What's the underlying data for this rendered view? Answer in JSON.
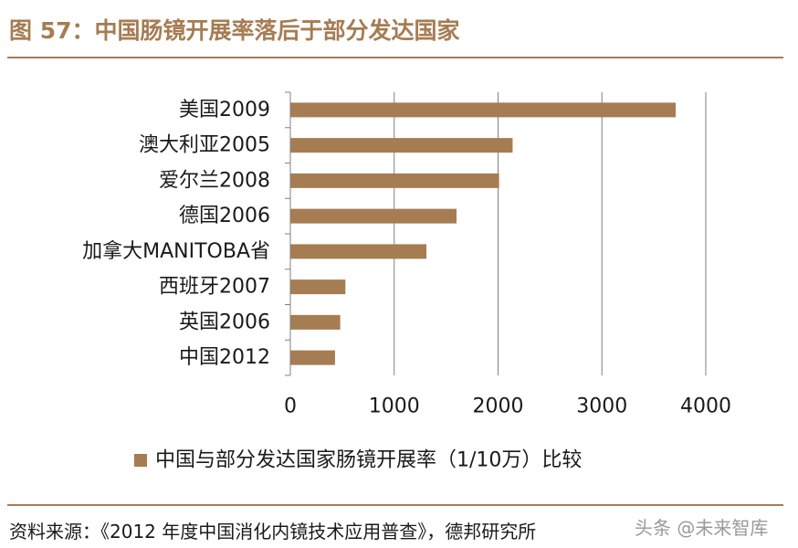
{
  "figure": {
    "title": "图 57：中国肠镜开展率落后于部分发达国家",
    "source": "资料来源：《2012 年度中国消化内镜技术应用普查》，德邦研究所",
    "watermark": "头条 @未来智库"
  },
  "chart_data": {
    "type": "bar",
    "orientation": "horizontal",
    "categories": [
      "美国2009",
      "澳大利亚2005",
      "爱尔兰2008",
      "德国2006",
      "加拿大MANITOBA省",
      "西班牙2007",
      "英国2006",
      "中国2012"
    ],
    "series": [
      {
        "name": "中国与部分发达国家肠镜开展率（1/10万）比较",
        "values": [
          3710,
          2140,
          2010,
          1600,
          1310,
          530,
          480,
          430
        ]
      }
    ],
    "xlim": [
      0,
      4000
    ],
    "xticks": [
      0,
      1000,
      2000,
      3000,
      4000
    ],
    "grid": true,
    "legend": "bottom",
    "colors": {
      "bar": "#a67c52",
      "axis": "#808080",
      "grid": "#808080"
    }
  }
}
